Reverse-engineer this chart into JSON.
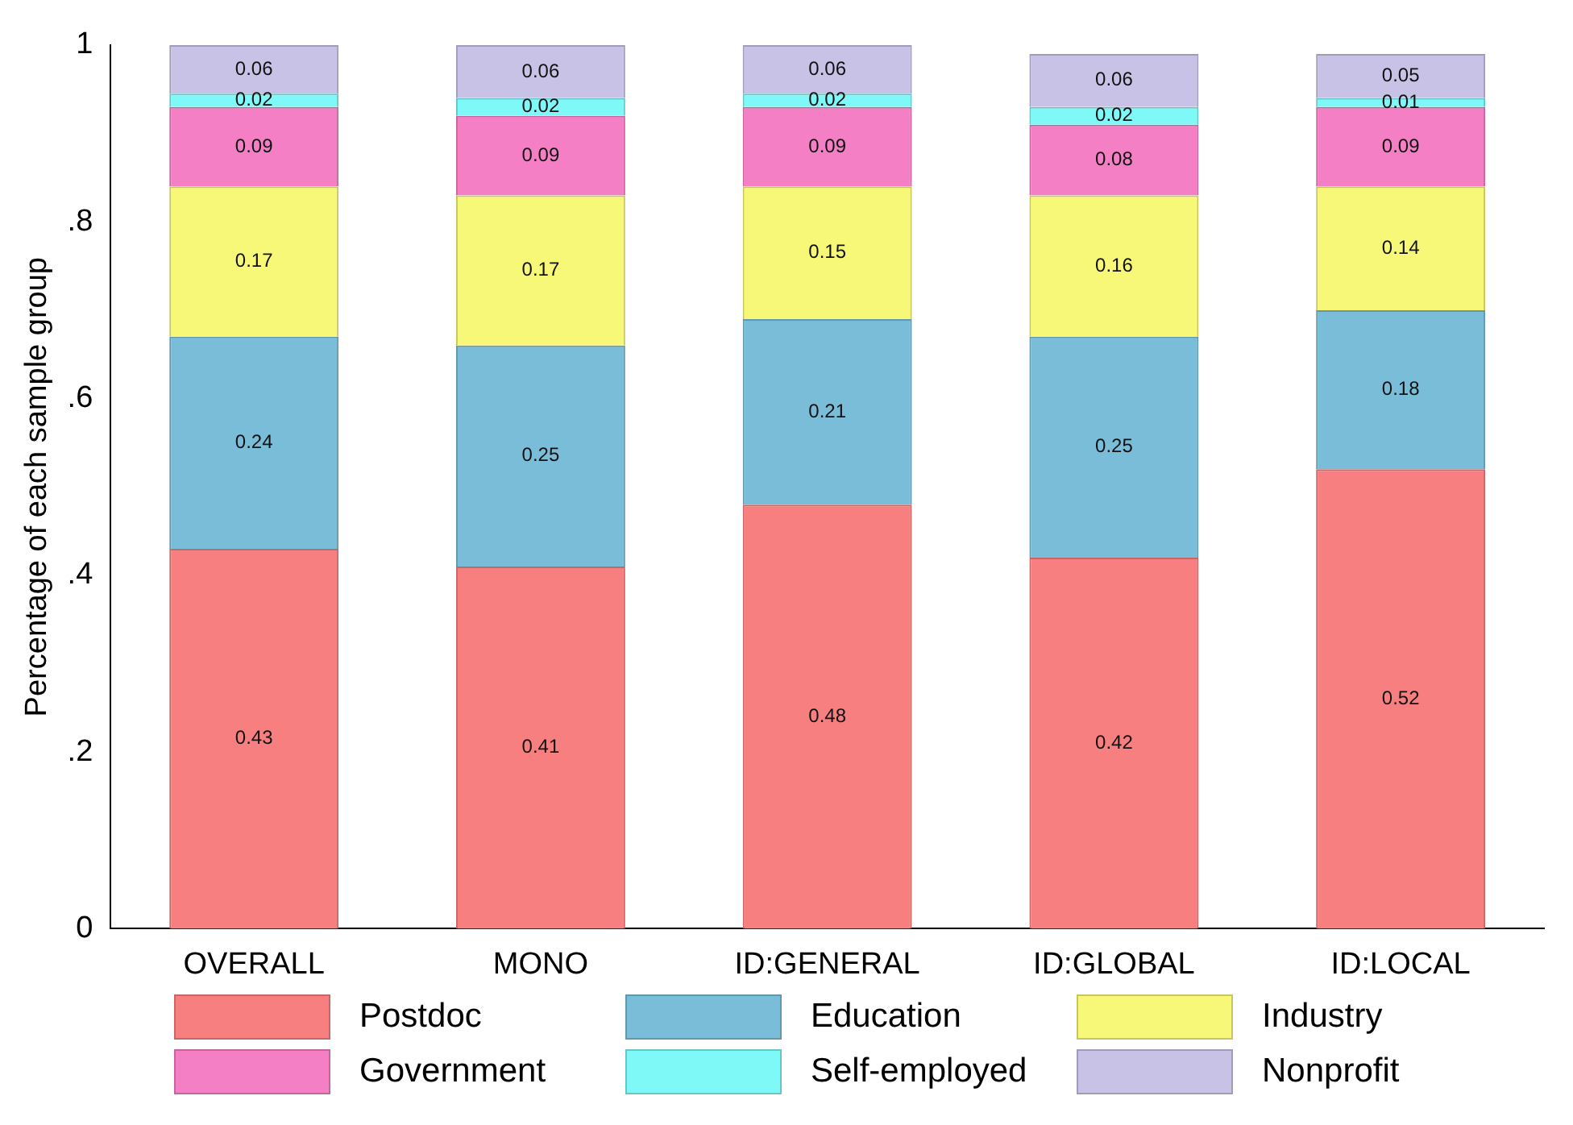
{
  "chart_data": {
    "type": "bar",
    "stacked": true,
    "ylabel": "Percentage of each sample group",
    "categories": [
      "OVERALL",
      "MONO",
      "ID:GENERAL",
      "ID:GLOBAL",
      "ID:LOCAL"
    ],
    "series": [
      {
        "name": "Postdoc",
        "color": "#f87f7f",
        "values": [
          0.43,
          0.41,
          0.48,
          0.42,
          0.52
        ],
        "value_labels": [
          "0.43",
          "0.41",
          "0.48",
          "0.42",
          "0.52"
        ]
      },
      {
        "name": "Education",
        "color": "#7abdd8",
        "values": [
          0.24,
          0.25,
          0.21,
          0.25,
          0.18
        ],
        "value_labels": [
          "0.24",
          "0.25",
          "0.21",
          "0.25",
          "0.18"
        ]
      },
      {
        "name": "Industry",
        "color": "#f8f878",
        "values": [
          0.17,
          0.17,
          0.15,
          0.16,
          0.14
        ],
        "value_labels": [
          "0.17",
          "0.17",
          "0.15",
          "0.16",
          "0.14"
        ]
      },
      {
        "name": "Government",
        "color": "#f57fc4",
        "values": [
          0.09,
          0.09,
          0.09,
          0.08,
          0.09
        ],
        "value_labels": [
          "0.09",
          "0.09",
          "0.09",
          "0.08",
          "0.09"
        ]
      },
      {
        "name": "Self-employed",
        "color": "#7ff8f8",
        "values": [
          0.015,
          0.02,
          0.015,
          0.02,
          0.01
        ],
        "value_labels": [
          "0.02",
          "0.02",
          "0.02",
          "0.02",
          "0.01"
        ]
      },
      {
        "name": "Nonprofit",
        "color": "#c8c3e6",
        "values": [
          0.055,
          0.06,
          0.055,
          0.06,
          0.05
        ],
        "value_labels": [
          "0.06",
          "0.06",
          "0.06",
          "0.06",
          "0.05"
        ]
      }
    ],
    "ylim": [
      0,
      1
    ],
    "yticks": [
      0,
      {
        "value": 0.2,
        "label": ".2"
      },
      {
        "value": 0.4,
        "label": ".4"
      },
      {
        "value": 0.6,
        "label": ".6"
      },
      {
        "value": 0.8,
        "label": ".8"
      },
      1
    ],
    "grid": false,
    "legend": "bottom"
  }
}
